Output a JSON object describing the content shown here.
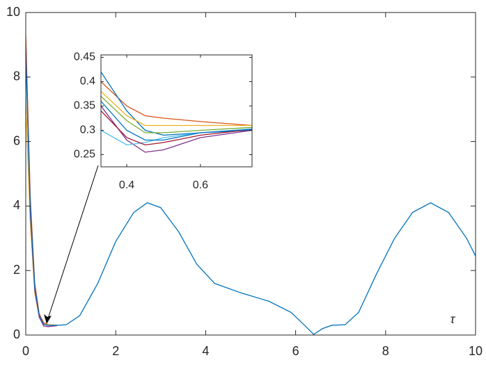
{
  "chart_data": [
    {
      "type": "line",
      "xlabel": "τ",
      "xlim": [
        0,
        10
      ],
      "ylim": [
        0,
        10
      ],
      "xticks": [
        0,
        2,
        4,
        6,
        8,
        10
      ],
      "yticks": [
        0,
        2,
        4,
        6,
        8,
        10
      ],
      "series": [
        {
          "color": "#D95319",
          "x": [
            0,
            0.1,
            0.2,
            0.3,
            0.4,
            0.5,
            0.7
          ],
          "values": [
            9.3,
            4.3,
            1.6,
            0.65,
            0.38,
            0.32,
            0.31
          ]
        },
        {
          "color": "#EDB120",
          "x": [
            0,
            0.1,
            0.2,
            0.3,
            0.4,
            0.5,
            0.7
          ],
          "values": [
            7.2,
            3.5,
            1.3,
            0.55,
            0.34,
            0.31,
            0.31
          ]
        },
        {
          "color": "#7E2F8E",
          "x": [
            0,
            0.1,
            0.2,
            0.3,
            0.4,
            0.5,
            0.7
          ],
          "values": [
            8.9,
            3.8,
            1.4,
            0.55,
            0.28,
            0.26,
            0.29
          ]
        },
        {
          "color": "#0072BD",
          "x": [
            0,
            0.1,
            0.2,
            0.3,
            0.4,
            0.5,
            0.7,
            0.9,
            1.2,
            1.6,
            2.0,
            2.4,
            2.7,
            3.0,
            3.4,
            3.8,
            4.2,
            4.8,
            5.4,
            5.9,
            6.2,
            6.4,
            6.6,
            6.8,
            7.1,
            7.4,
            7.8,
            8.2,
            8.6,
            9.0,
            9.4,
            9.8,
            10
          ],
          "values": [
            8.7,
            4.0,
            1.5,
            0.6,
            0.33,
            0.3,
            0.3,
            0.32,
            0.6,
            1.6,
            2.9,
            3.8,
            4.1,
            3.95,
            3.2,
            2.2,
            1.6,
            1.3,
            1.05,
            0.7,
            0.3,
            0.02,
            0.2,
            0.3,
            0.32,
            0.7,
            1.9,
            3.0,
            3.8,
            4.1,
            3.8,
            3.0,
            2.45
          ]
        }
      ]
    },
    {
      "type": "line",
      "xlim": [
        0.33,
        0.74
      ],
      "ylim": [
        0.225,
        0.455
      ],
      "xticks": [
        0.4,
        0.6
      ],
      "yticks": [
        0.25,
        0.3,
        0.35,
        0.4,
        0.45
      ],
      "series": [
        {
          "color": "#D95319",
          "x": [
            0.33,
            0.4,
            0.45,
            0.5,
            0.6,
            0.74
          ],
          "values": [
            0.4,
            0.35,
            0.33,
            0.325,
            0.318,
            0.31
          ]
        },
        {
          "color": "#0072BD",
          "x": [
            0.33,
            0.4,
            0.45,
            0.5,
            0.6,
            0.74
          ],
          "values": [
            0.42,
            0.34,
            0.3,
            0.29,
            0.295,
            0.3
          ]
        },
        {
          "color": "#EDB120",
          "x": [
            0.33,
            0.4,
            0.45,
            0.5,
            0.6,
            0.74
          ],
          "values": [
            0.38,
            0.33,
            0.31,
            0.31,
            0.31,
            0.31
          ]
        },
        {
          "color": "#77AC30",
          "x": [
            0.33,
            0.4,
            0.45,
            0.5,
            0.6,
            0.74
          ],
          "values": [
            0.37,
            0.32,
            0.295,
            0.295,
            0.3,
            0.306
          ]
        },
        {
          "color": "#7E2F8E",
          "x": [
            0.33,
            0.4,
            0.45,
            0.5,
            0.6,
            0.74
          ],
          "values": [
            0.35,
            0.28,
            0.255,
            0.26,
            0.285,
            0.3
          ]
        },
        {
          "color": "#4DBEEE",
          "x": [
            0.33,
            0.4,
            0.45,
            0.5,
            0.6,
            0.74
          ],
          "values": [
            0.3,
            0.27,
            0.275,
            0.285,
            0.295,
            0.303
          ]
        },
        {
          "color": "#A2142F",
          "x": [
            0.33,
            0.4,
            0.45,
            0.5,
            0.6,
            0.74
          ],
          "values": [
            0.34,
            0.285,
            0.27,
            0.275,
            0.29,
            0.302
          ]
        },
        {
          "color": "#0072BD",
          "x": [
            0.33,
            0.4,
            0.45,
            0.5,
            0.6,
            0.74
          ],
          "values": [
            0.36,
            0.3,
            0.28,
            0.28,
            0.295,
            0.302
          ]
        }
      ]
    }
  ]
}
